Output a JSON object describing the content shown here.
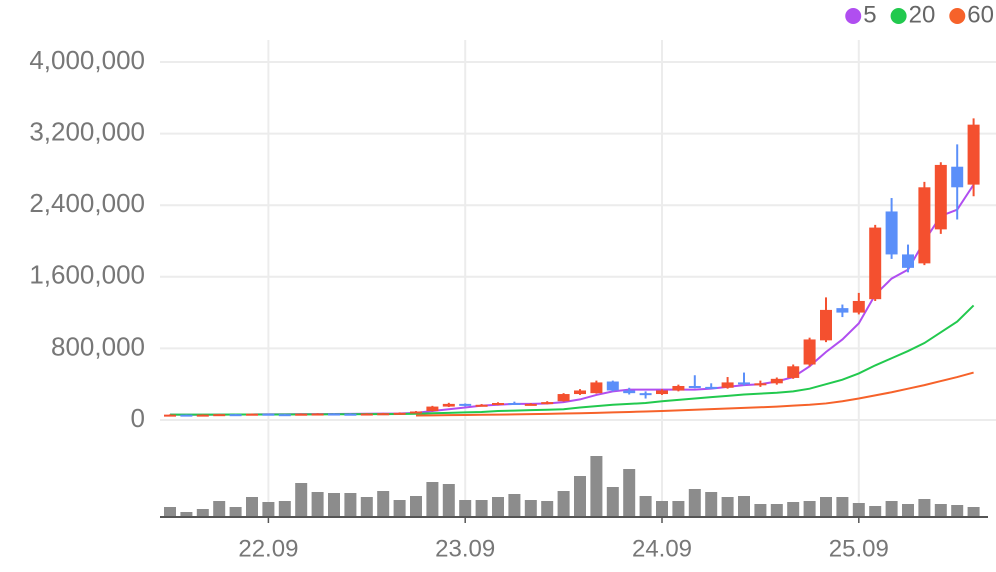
{
  "chart_data": {
    "type": "candlestick",
    "categories": [
      null,
      null,
      null,
      null,
      null,
      null,
      "22.09",
      null,
      null,
      null,
      null,
      null,
      null,
      null,
      null,
      null,
      null,
      null,
      "23.09",
      null,
      null,
      null,
      null,
      null,
      null,
      null,
      null,
      null,
      null,
      null,
      "24.09",
      null,
      null,
      null,
      null,
      null,
      null,
      null,
      null,
      null,
      null,
      null,
      "25.09",
      null,
      null,
      null,
      null,
      null,
      null,
      null
    ],
    "open": [
      58000,
      60000,
      55000,
      60000,
      65000,
      62000,
      70000,
      65000,
      60000,
      70000,
      72000,
      70000,
      68000,
      72000,
      75000,
      80000,
      100000,
      150000,
      180000,
      160000,
      170000,
      190000,
      175000,
      180000,
      210000,
      290000,
      300000,
      430000,
      330000,
      300000,
      290000,
      330000,
      380000,
      370000,
      360000,
      420000,
      400000,
      410000,
      470000,
      620000,
      890000,
      1250000,
      1200000,
      1350000,
      2330000,
      1850000,
      1750000,
      2130000,
      2830000,
      2630000
    ],
    "high": [
      63000,
      62000,
      63000,
      68000,
      68000,
      73000,
      72000,
      67000,
      73000,
      76000,
      75000,
      73000,
      76000,
      79000,
      85000,
      100000,
      158000,
      192000,
      185000,
      178000,
      198000,
      205000,
      188000,
      210000,
      300000,
      345000,
      440000,
      440000,
      360000,
      320000,
      345000,
      395000,
      500000,
      410000,
      480000,
      530000,
      440000,
      475000,
      620000,
      920000,
      1370000,
      1290000,
      1420000,
      2180000,
      2480000,
      1960000,
      2660000,
      2880000,
      3080000,
      3370000
    ],
    "low": [
      55000,
      52000,
      53000,
      57000,
      59000,
      60000,
      62000,
      57000,
      58000,
      67000,
      66000,
      64000,
      65000,
      69000,
      72000,
      77000,
      96000,
      145000,
      152000,
      155000,
      165000,
      172000,
      170000,
      175000,
      205000,
      280000,
      295000,
      320000,
      285000,
      240000,
      280000,
      320000,
      355000,
      345000,
      350000,
      385000,
      370000,
      395000,
      460000,
      600000,
      870000,
      1150000,
      1180000,
      1330000,
      1800000,
      1650000,
      1730000,
      2080000,
      2240000,
      2500000
    ],
    "close": [
      60000,
      55000,
      60000,
      65000,
      62000,
      70000,
      65000,
      60000,
      70000,
      72000,
      70000,
      68000,
      72000,
      75000,
      80000,
      95000,
      150000,
      180000,
      160000,
      170000,
      190000,
      180000,
      180000,
      200000,
      290000,
      330000,
      420000,
      330000,
      300000,
      290000,
      330000,
      380000,
      370000,
      360000,
      420000,
      400000,
      410000,
      460000,
      600000,
      900000,
      1230000,
      1200000,
      1330000,
      2150000,
      1850000,
      1700000,
      2600000,
      2850000,
      2600000,
      3300000
    ],
    "up_color": "#f4502f",
    "down_color": "#5b8ff9",
    "volume": [
      10,
      5,
      8,
      16,
      10,
      20,
      15,
      16,
      34,
      25,
      24,
      24,
      20,
      26,
      17,
      21,
      35,
      33,
      17,
      17,
      20,
      23,
      17,
      16,
      26,
      41,
      61,
      30,
      48,
      21,
      16,
      16,
      28,
      25,
      20,
      21,
      13,
      13,
      15,
      16,
      20,
      20,
      14,
      11,
      16,
      13,
      18,
      13,
      12,
      10
    ],
    "volume_color": "#8c8c8c",
    "series": [
      {
        "name": "5",
        "color": "#b04ef0",
        "values": [
          60000,
          59000,
          58000,
          60000,
          61000,
          62000,
          64000,
          64000,
          65000,
          66000,
          67000,
          68000,
          70000,
          71000,
          73000,
          80000,
          100000,
          120000,
          140000,
          160000,
          170000,
          180000,
          180000,
          185000,
          200000,
          230000,
          280000,
          320000,
          340000,
          340000,
          340000,
          340000,
          340000,
          350000,
          370000,
          390000,
          400000,
          430000,
          480000,
          600000,
          760000,
          900000,
          1080000,
          1400000,
          1580000,
          1680000,
          2000000,
          2280000,
          2350000,
          2630000
        ]
      },
      {
        "name": "20",
        "color": "#22c94e",
        "values": [
          60000,
          60000,
          60000,
          60000,
          61000,
          61000,
          62000,
          62000,
          63000,
          63000,
          64000,
          64000,
          65000,
          66000,
          67000,
          70000,
          75000,
          80000,
          85000,
          90000,
          100000,
          105000,
          110000,
          115000,
          120000,
          140000,
          155000,
          170000,
          180000,
          190000,
          210000,
          225000,
          240000,
          255000,
          270000,
          285000,
          295000,
          305000,
          320000,
          350000,
          400000,
          450000,
          520000,
          610000,
          690000,
          770000,
          860000,
          980000,
          1100000,
          1280000
        ]
      },
      {
        "name": "60",
        "color": "#f6622a",
        "values": [
          null,
          null,
          null,
          null,
          null,
          null,
          null,
          null,
          null,
          null,
          null,
          null,
          null,
          null,
          null,
          50000,
          52000,
          54000,
          56000,
          58000,
          60000,
          63000,
          66000,
          69000,
          72000,
          75000,
          80000,
          85000,
          90000,
          95000,
          100000,
          107000,
          114000,
          121000,
          128000,
          135000,
          142000,
          150000,
          160000,
          170000,
          185000,
          210000,
          240000,
          275000,
          310000,
          350000,
          390000,
          435000,
          480000,
          530000
        ]
      }
    ],
    "ylim": [
      0,
      4000000
    ],
    "yticks": [
      0,
      {
        "value": 800000,
        "label": "800,000"
      },
      {
        "value": 1600000,
        "label": "1,600,000"
      },
      {
        "value": 2400000,
        "label": "2,400,000"
      },
      {
        "value": 3200000,
        "label": "3,200,000"
      },
      {
        "value": 4000000,
        "label": "4,000,000"
      }
    ],
    "grid": true
  }
}
